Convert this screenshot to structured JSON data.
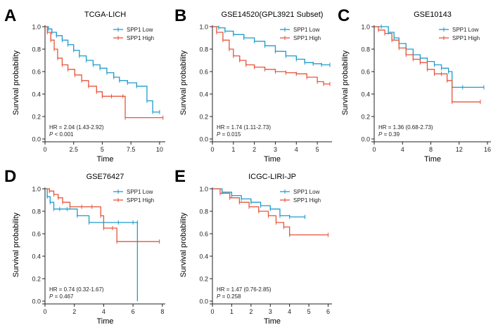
{
  "colors": {
    "low": "#1f9bcc",
    "high": "#e8543a",
    "axis": "#222222"
  },
  "chart_data": [
    {
      "type": "line",
      "panel_letter": "A",
      "title": "TCGA-LICH",
      "xlabel": "Time",
      "ylabel": "Survival probability",
      "xlim": [
        0,
        10.5
      ],
      "ylim": [
        0,
        1.0
      ],
      "xticks": [
        "0",
        "2.5",
        "5",
        "7.5",
        "10"
      ],
      "xtick_values": [
        0,
        2.5,
        5,
        7.5,
        10
      ],
      "yticks": [
        "0.0",
        "0.2",
        "0.4",
        "0.6",
        "0.8",
        "1.0"
      ],
      "ytick_values": [
        0,
        0.2,
        0.4,
        0.6,
        0.8,
        1.0
      ],
      "legend": [
        "SPP1 Low",
        "SPP1 High"
      ],
      "hr_text": "HR = 2.04 (1.43-2.92)",
      "p_label": "P",
      "p_text": " < 0.001",
      "series": [
        {
          "name": "SPP1 Low",
          "color_key": "low",
          "x": [
            0,
            0.3,
            0.6,
            1.0,
            1.5,
            2.0,
            2.5,
            3.0,
            3.6,
            4.2,
            4.8,
            5.4,
            6.0,
            6.5,
            7.2,
            8.0,
            8.9,
            9.4,
            10.0
          ],
          "y": [
            1.0,
            0.98,
            0.95,
            0.92,
            0.88,
            0.84,
            0.79,
            0.74,
            0.7,
            0.66,
            0.63,
            0.59,
            0.55,
            0.52,
            0.5,
            0.47,
            0.34,
            0.24,
            0.24
          ]
        },
        {
          "name": "SPP1 High",
          "color_key": "high",
          "x": [
            0,
            0.2,
            0.5,
            0.8,
            1.1,
            1.5,
            2.0,
            2.6,
            3.2,
            3.8,
            4.5,
            5.0,
            5.8,
            6.8,
            7.0,
            10.3
          ],
          "y": [
            1.0,
            0.95,
            0.88,
            0.8,
            0.72,
            0.66,
            0.62,
            0.57,
            0.52,
            0.47,
            0.42,
            0.38,
            0.38,
            0.38,
            0.19,
            0.19
          ]
        }
      ]
    },
    {
      "type": "line",
      "panel_letter": "B",
      "title": "GSE14520(GPL3921 Subset)",
      "xlabel": "Time",
      "ylabel": "Survival probability",
      "xlim": [
        0,
        5.7
      ],
      "ylim": [
        0,
        1.0
      ],
      "xticks": [
        "0",
        "1",
        "2",
        "3",
        "4",
        "5"
      ],
      "xtick_values": [
        0,
        1,
        2,
        3,
        4,
        5
      ],
      "yticks": [
        "0.0",
        "0.2",
        "0.4",
        "0.6",
        "0.8",
        "1.0"
      ],
      "ytick_values": [
        0,
        0.2,
        0.4,
        0.6,
        0.8,
        1.0
      ],
      "legend": [
        "SPP1 Low",
        "SPP1 High"
      ],
      "hr_text": "HR = 1.74 (1.11-2.73)",
      "p_label": "P",
      "p_text": " = 0.015",
      "series": [
        {
          "name": "SPP1 Low",
          "color_key": "low",
          "x": [
            0,
            0.3,
            0.6,
            1.0,
            1.5,
            2.0,
            2.5,
            3.0,
            3.5,
            4.0,
            4.4,
            4.8,
            5.2,
            5.6
          ],
          "y": [
            1.0,
            0.99,
            0.96,
            0.93,
            0.9,
            0.87,
            0.83,
            0.78,
            0.74,
            0.71,
            0.68,
            0.67,
            0.66,
            0.66
          ]
        },
        {
          "name": "SPP1 High",
          "color_key": "high",
          "x": [
            0,
            0.2,
            0.5,
            0.8,
            1.0,
            1.3,
            1.6,
            2.0,
            2.5,
            3.0,
            3.5,
            4.0,
            4.5,
            5.0,
            5.3,
            5.6
          ],
          "y": [
            1.0,
            0.95,
            0.88,
            0.8,
            0.74,
            0.7,
            0.66,
            0.64,
            0.62,
            0.6,
            0.59,
            0.58,
            0.55,
            0.51,
            0.49,
            0.49
          ]
        }
      ]
    },
    {
      "type": "line",
      "panel_letter": "C",
      "title": "GSE10143",
      "xlabel": "Time",
      "ylabel": "Survival probability",
      "xlim": [
        0,
        16.5
      ],
      "ylim": [
        0,
        1.0
      ],
      "xticks": [
        "0",
        "4",
        "8",
        "12",
        "16"
      ],
      "xtick_values": [
        0,
        4,
        8,
        12,
        16
      ],
      "yticks": [
        "0.0",
        "0.2",
        "0.4",
        "0.6",
        "0.8",
        "1.0"
      ],
      "ytick_values": [
        0,
        0.2,
        0.4,
        0.6,
        0.8,
        1.0
      ],
      "legend": [
        "SPP1 Low",
        "SPP1 High"
      ],
      "hr_text": "HR = 1.36 (0.68-2.73)",
      "p_label": "P",
      "p_text": " = 0.39",
      "series": [
        {
          "name": "SPP1 Low",
          "color_key": "low",
          "x": [
            0,
            1.0,
            2.0,
            2.8,
            3.5,
            4.5,
            5.5,
            6.5,
            7.5,
            8.5,
            9.5,
            10.5,
            11.0,
            12.5,
            15.5
          ],
          "y": [
            1.0,
            1.0,
            0.95,
            0.9,
            0.85,
            0.8,
            0.75,
            0.72,
            0.69,
            0.66,
            0.63,
            0.6,
            0.46,
            0.46,
            0.46
          ]
        },
        {
          "name": "SPP1 High",
          "color_key": "high",
          "x": [
            0,
            0.6,
            1.5,
            2.5,
            3.5,
            4.5,
            5.5,
            6.5,
            7.5,
            8.5,
            9.5,
            10.3,
            11.0,
            15.0
          ],
          "y": [
            1.0,
            0.97,
            0.94,
            0.88,
            0.81,
            0.75,
            0.71,
            0.68,
            0.62,
            0.58,
            0.58,
            0.52,
            0.33,
            0.33
          ]
        }
      ]
    },
    {
      "type": "line",
      "panel_letter": "D",
      "title": "GSE76427",
      "xlabel": "Time",
      "ylabel": "Survival probability",
      "xlim": [
        0,
        8.2
      ],
      "ylim": [
        0,
        1.0
      ],
      "xticks": [
        "0",
        "2",
        "4",
        "6",
        "8"
      ],
      "xtick_values": [
        0,
        2,
        4,
        6,
        8
      ],
      "yticks": [
        "0.0",
        "0.2",
        "0.4",
        "0.6",
        "0.8",
        "1.0"
      ],
      "ytick_values": [
        0,
        0.2,
        0.4,
        0.6,
        0.8,
        1.0
      ],
      "legend": [
        "SPP1 Low",
        "SPP1 High"
      ],
      "hr_text": "HR = 0.74 (0.32-1.67)",
      "p_label": "P",
      "p_text": " = 0.467",
      "series": [
        {
          "name": "SPP1 Low",
          "color_key": "low",
          "x": [
            0,
            0.15,
            0.35,
            0.6,
            1.0,
            1.5,
            2.2,
            3.0,
            4.0,
            5.0,
            6.0,
            6.3,
            6.3
          ],
          "y": [
            1.0,
            0.93,
            0.88,
            0.82,
            0.82,
            0.82,
            0.76,
            0.7,
            0.7,
            0.7,
            0.7,
            0.7,
            0.0
          ]
        },
        {
          "name": "SPP1 High",
          "color_key": "high",
          "x": [
            0,
            0.3,
            0.6,
            0.9,
            1.2,
            1.7,
            2.5,
            3.2,
            3.8,
            4.0,
            4.6,
            4.9,
            7.8
          ],
          "y": [
            1.0,
            0.98,
            0.95,
            0.92,
            0.88,
            0.84,
            0.84,
            0.84,
            0.76,
            0.65,
            0.65,
            0.53,
            0.53
          ]
        }
      ]
    },
    {
      "type": "line",
      "panel_letter": "E",
      "title": "ICGC-LIRI-JP",
      "xlabel": "Time",
      "ylabel": "Survival probability",
      "xlim": [
        0,
        6.2
      ],
      "ylim": [
        0,
        1.0
      ],
      "xticks": [
        "0",
        "1",
        "2",
        "3",
        "4",
        "5",
        "6"
      ],
      "xtick_values": [
        0,
        1,
        2,
        3,
        4,
        5,
        6
      ],
      "yticks": [
        "0.0",
        "0.2",
        "0.4",
        "0.6",
        "0.8",
        "1.0"
      ],
      "ytick_values": [
        0,
        0.2,
        0.4,
        0.6,
        0.8,
        1.0
      ],
      "legend": [
        "SPP1 Low",
        "SPP1 High"
      ],
      "hr_text": "HR = 1.47 (0.76-2.85)",
      "p_label": "P",
      "p_text": " = 0.258",
      "series": [
        {
          "name": "SPP1 Low",
          "color_key": "low",
          "x": [
            0,
            0.5,
            1.0,
            1.5,
            2.0,
            2.5,
            3.0,
            3.5,
            4.0,
            4.8
          ],
          "y": [
            1.0,
            0.97,
            0.94,
            0.91,
            0.88,
            0.85,
            0.82,
            0.76,
            0.75,
            0.75
          ]
        },
        {
          "name": "SPP1 High",
          "color_key": "high",
          "x": [
            0,
            0.4,
            0.9,
            1.4,
            1.9,
            2.4,
            2.9,
            3.3,
            3.7,
            4.0,
            6.0
          ],
          "y": [
            1.0,
            0.96,
            0.92,
            0.88,
            0.84,
            0.8,
            0.76,
            0.7,
            0.66,
            0.59,
            0.59
          ]
        }
      ]
    }
  ]
}
